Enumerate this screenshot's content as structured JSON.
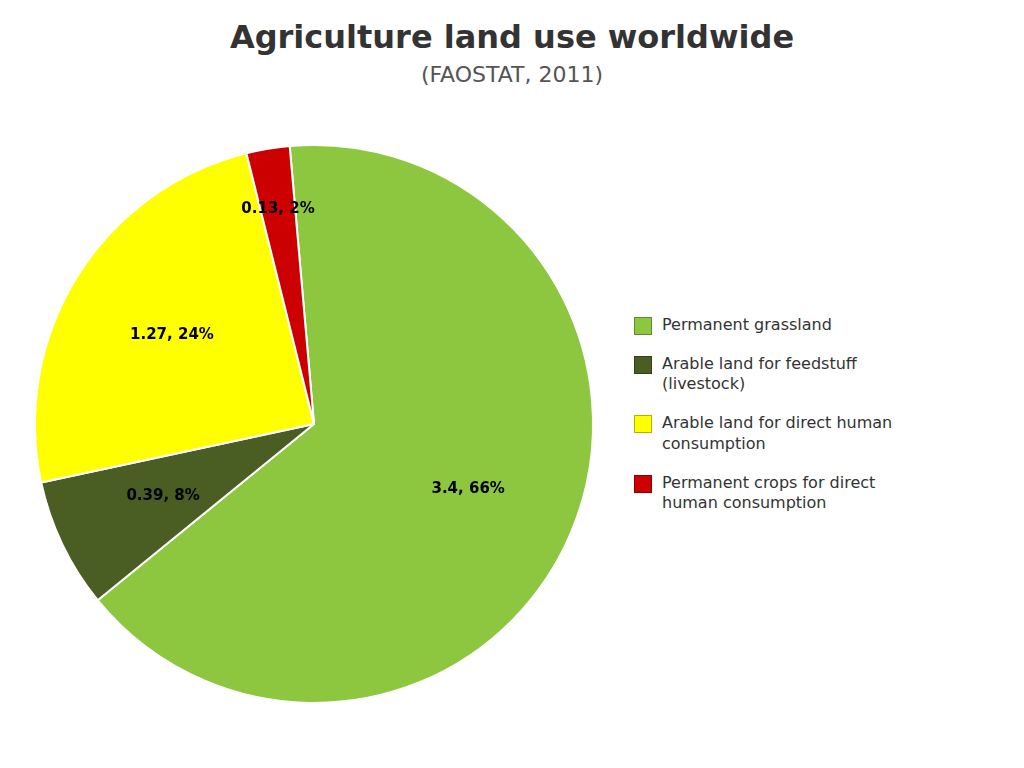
{
  "chart_data": {
    "type": "pie",
    "title": "Agriculture land use worldwide",
    "subtitle": "(FAOSTAT, 2011)",
    "categories": [
      "Permanent grassland",
      "Arable land for feedstuff\n(livestock)",
      "Arable land for direct human\nconsumption",
      "Permanent crops for direct\nhuman consumption"
    ],
    "values": [
      3.4,
      0.39,
      1.27,
      0.13
    ],
    "value_labels": [
      "3.4, 66%",
      "0.39, 8%",
      "1.27, 24%",
      "0.13, 2%"
    ],
    "colors": [
      "#8DC63F",
      "#4A5E23",
      "#FFFF00",
      "#CC0000"
    ],
    "data_labels": true,
    "legend": "right"
  }
}
